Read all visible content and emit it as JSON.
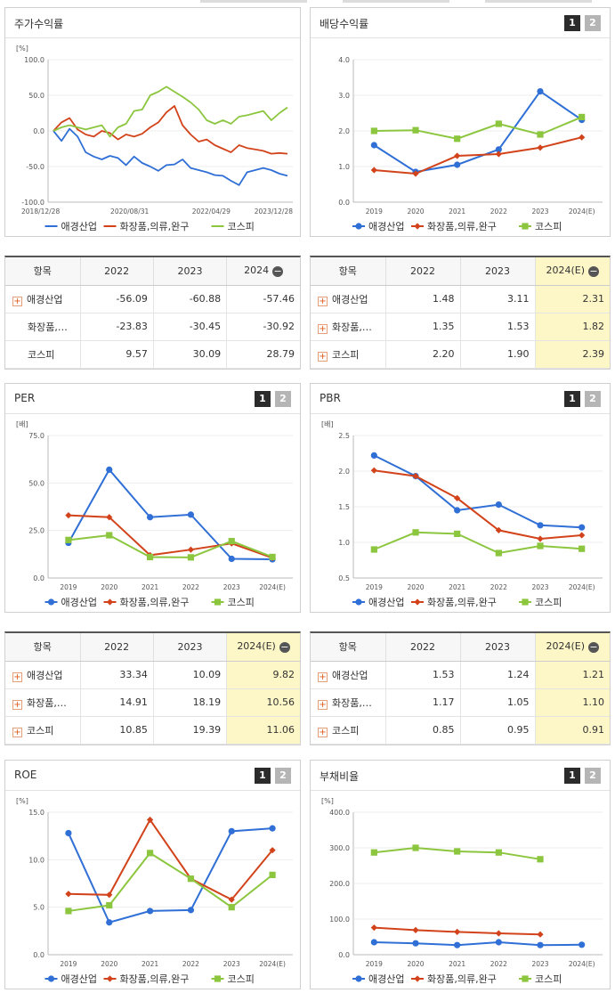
{
  "colors": {
    "company": "#2f6fd6",
    "industry": "#d2431b",
    "kospi": "#8cc63f",
    "axis": "#999999",
    "grid": "#eeeeee"
  },
  "panels": {
    "stock": {
      "title": "주가수익률"
    },
    "div": {
      "title": "배당수익률",
      "pages": [
        "1",
        "2"
      ]
    },
    "per": {
      "title": "PER",
      "pages": [
        "1",
        "2"
      ]
    },
    "pbr": {
      "title": "PBR",
      "pages": [
        "1",
        "2"
      ]
    },
    "roe": {
      "title": "ROE",
      "pages": [
        "1",
        "2"
      ]
    },
    "debt": {
      "title": "부채비율",
      "pages": [
        "1",
        "2"
      ]
    }
  },
  "tables": {
    "stock": {
      "headers": [
        "항목",
        "2022",
        "2023",
        "2024"
      ],
      "rows": [
        {
          "name": "애경산업",
          "plus": true,
          "values": [
            "-56.09",
            "-60.88",
            "-57.46"
          ]
        },
        {
          "name": "화장품,의…",
          "plus": false,
          "values": [
            "-23.83",
            "-30.45",
            "-30.92"
          ]
        },
        {
          "name": "코스피",
          "plus": false,
          "values": [
            "9.57",
            "30.09",
            "28.79"
          ]
        }
      ]
    },
    "div": {
      "headers": [
        "항목",
        "2022",
        "2023",
        "2024(E)"
      ],
      "rows": [
        {
          "name": "애경산업",
          "plus": true,
          "values": [
            "1.48",
            "3.11",
            "2.31"
          ]
        },
        {
          "name": "화장품,의…",
          "plus": true,
          "values": [
            "1.35",
            "1.53",
            "1.82"
          ]
        },
        {
          "name": "코스피",
          "plus": true,
          "values": [
            "2.20",
            "1.90",
            "2.39"
          ]
        }
      ]
    },
    "per": {
      "headers": [
        "항목",
        "2022",
        "2023",
        "2024(E)"
      ],
      "rows": [
        {
          "name": "애경산업",
          "plus": true,
          "values": [
            "33.34",
            "10.09",
            "9.82"
          ]
        },
        {
          "name": "화장품,의…",
          "plus": true,
          "values": [
            "14.91",
            "18.19",
            "10.56"
          ]
        },
        {
          "name": "코스피",
          "plus": true,
          "values": [
            "10.85",
            "19.39",
            "11.06"
          ]
        }
      ]
    },
    "pbr": {
      "headers": [
        "항목",
        "2022",
        "2023",
        "2024(E)"
      ],
      "rows": [
        {
          "name": "애경산업",
          "plus": true,
          "values": [
            "1.53",
            "1.24",
            "1.21"
          ]
        },
        {
          "name": "화장품,의…",
          "plus": true,
          "values": [
            "1.17",
            "1.05",
            "1.10"
          ]
        },
        {
          "name": "코스피",
          "plus": true,
          "values": [
            "0.85",
            "0.95",
            "0.91"
          ]
        }
      ]
    }
  },
  "chart_data": [
    {
      "id": "stock",
      "type": "line",
      "unit": "[%]",
      "ylim": [
        -100,
        100
      ],
      "yticks": [
        "100.0",
        "50.0",
        "0.0",
        "-50.0",
        "-100.0"
      ],
      "xticks": [
        "2018/12/28",
        "2020/08/31",
        "2022/04/29",
        "2023/12/28"
      ],
      "series": [
        {
          "name": "애경산업",
          "key": "company",
          "values": [
            0,
            -14,
            3,
            -8,
            -30,
            -36,
            -40,
            -35,
            -38,
            -48,
            -36,
            -45,
            -50,
            -56,
            -48,
            -47,
            -40,
            -52,
            -55,
            -58,
            -62,
            -63,
            -70,
            -76,
            -58,
            -55,
            -52,
            -55,
            -60,
            -63
          ]
        },
        {
          "name": "화장품,의류,완구",
          "key": "industry",
          "values": [
            0,
            12,
            18,
            2,
            -5,
            -8,
            0,
            -3,
            -12,
            -5,
            -8,
            -4,
            5,
            12,
            26,
            35,
            8,
            -5,
            -15,
            -12,
            -20,
            -25,
            -30,
            -20,
            -24,
            -26,
            -28,
            -32,
            -31,
            -32
          ]
        },
        {
          "name": "코스피",
          "key": "kospi",
          "values": [
            0,
            5,
            8,
            5,
            2,
            5,
            8,
            -8,
            5,
            10,
            28,
            30,
            50,
            55,
            62,
            55,
            48,
            40,
            30,
            15,
            10,
            15,
            10,
            20,
            22,
            25,
            28,
            15,
            25,
            33
          ]
        }
      ]
    },
    {
      "id": "div",
      "type": "line",
      "unit": "",
      "ylim": [
        0,
        4
      ],
      "yticks": [
        "4.0",
        "3.0",
        "2.0",
        "1.0",
        "0.0"
      ],
      "categories": [
        "2019",
        "2020",
        "2021",
        "2022",
        "2023",
        "2024(E)"
      ],
      "series": [
        {
          "name": "애경산업",
          "key": "company",
          "marker": "circle",
          "values": [
            1.6,
            0.85,
            1.05,
            1.48,
            3.11,
            2.31
          ]
        },
        {
          "name": "화장품,의류,완구",
          "key": "industry",
          "marker": "diamond",
          "values": [
            0.9,
            0.8,
            1.3,
            1.35,
            1.53,
            1.82
          ]
        },
        {
          "name": "코스피",
          "key": "kospi",
          "marker": "square",
          "values": [
            2.0,
            2.02,
            1.78,
            2.2,
            1.9,
            2.39
          ]
        }
      ]
    },
    {
      "id": "per",
      "type": "line",
      "unit": "[배]",
      "ylim": [
        0,
        75
      ],
      "yticks": [
        "75.0",
        "50.0",
        "25.0",
        "0.0"
      ],
      "categories": [
        "2019",
        "2020",
        "2021",
        "2022",
        "2023",
        "2024(E)"
      ],
      "series": [
        {
          "name": "애경산업",
          "key": "company",
          "marker": "circle",
          "values": [
            18.5,
            57.0,
            32.0,
            33.34,
            10.09,
            9.82
          ]
        },
        {
          "name": "화장품,의류,완구",
          "key": "industry",
          "marker": "diamond",
          "values": [
            33.0,
            32.0,
            12.0,
            14.91,
            18.19,
            10.56
          ]
        },
        {
          "name": "코스피",
          "key": "kospi",
          "marker": "square",
          "values": [
            20.0,
            22.5,
            11.0,
            10.85,
            19.39,
            11.06
          ]
        }
      ]
    },
    {
      "id": "pbr",
      "type": "line",
      "unit": "[배]",
      "ylim": [
        0.5,
        2.5
      ],
      "yticks": [
        "2.5",
        "2.0",
        "1.5",
        "1.0",
        "0.5"
      ],
      "categories": [
        "2019",
        "2020",
        "2021",
        "2022",
        "2023",
        "2024(E)"
      ],
      "series": [
        {
          "name": "애경산업",
          "key": "company",
          "marker": "circle",
          "values": [
            2.22,
            1.93,
            1.45,
            1.53,
            1.24,
            1.21
          ]
        },
        {
          "name": "화장품,의류,완구",
          "key": "industry",
          "marker": "diamond",
          "values": [
            2.01,
            1.93,
            1.62,
            1.17,
            1.05,
            1.1
          ]
        },
        {
          "name": "코스피",
          "key": "kospi",
          "marker": "square",
          "values": [
            0.9,
            1.14,
            1.12,
            0.85,
            0.95,
            0.91
          ]
        }
      ]
    },
    {
      "id": "roe",
      "type": "line",
      "unit": "[%]",
      "ylim": [
        0,
        15
      ],
      "yticks": [
        "15.0",
        "10.0",
        "5.0",
        "0.0"
      ],
      "categories": [
        "2019",
        "2020",
        "2021",
        "2022",
        "2023",
        "2024(E)"
      ],
      "series": [
        {
          "name": "애경산업",
          "key": "company",
          "marker": "circle",
          "values": [
            12.8,
            3.4,
            4.6,
            4.7,
            13.0,
            13.3
          ]
        },
        {
          "name": "화장품,의류,완구",
          "key": "industry",
          "marker": "diamond",
          "values": [
            6.4,
            6.3,
            14.2,
            8.0,
            5.8,
            11.0
          ]
        },
        {
          "name": "코스피",
          "key": "kospi",
          "marker": "square",
          "values": [
            4.6,
            5.2,
            10.7,
            8.0,
            5.0,
            8.4
          ]
        }
      ]
    },
    {
      "id": "debt",
      "type": "line",
      "unit": "[%]",
      "ylim": [
        0,
        400
      ],
      "yticks": [
        "400.0",
        "300.0",
        "200.0",
        "100.0",
        "0.0"
      ],
      "categories": [
        "2019",
        "2020",
        "2021",
        "2022",
        "2023",
        "2024(E)"
      ],
      "series": [
        {
          "name": "애경산업",
          "key": "company",
          "marker": "circle",
          "values": [
            35,
            32,
            27,
            35,
            27,
            28
          ]
        },
        {
          "name": "화장품,의류,완구",
          "key": "industry",
          "marker": "diamond",
          "values": [
            76,
            69,
            64,
            60,
            57,
            null
          ]
        },
        {
          "name": "코스피",
          "key": "kospi",
          "marker": "square",
          "values": [
            287,
            300,
            290,
            287,
            268,
            null
          ]
        }
      ]
    }
  ]
}
